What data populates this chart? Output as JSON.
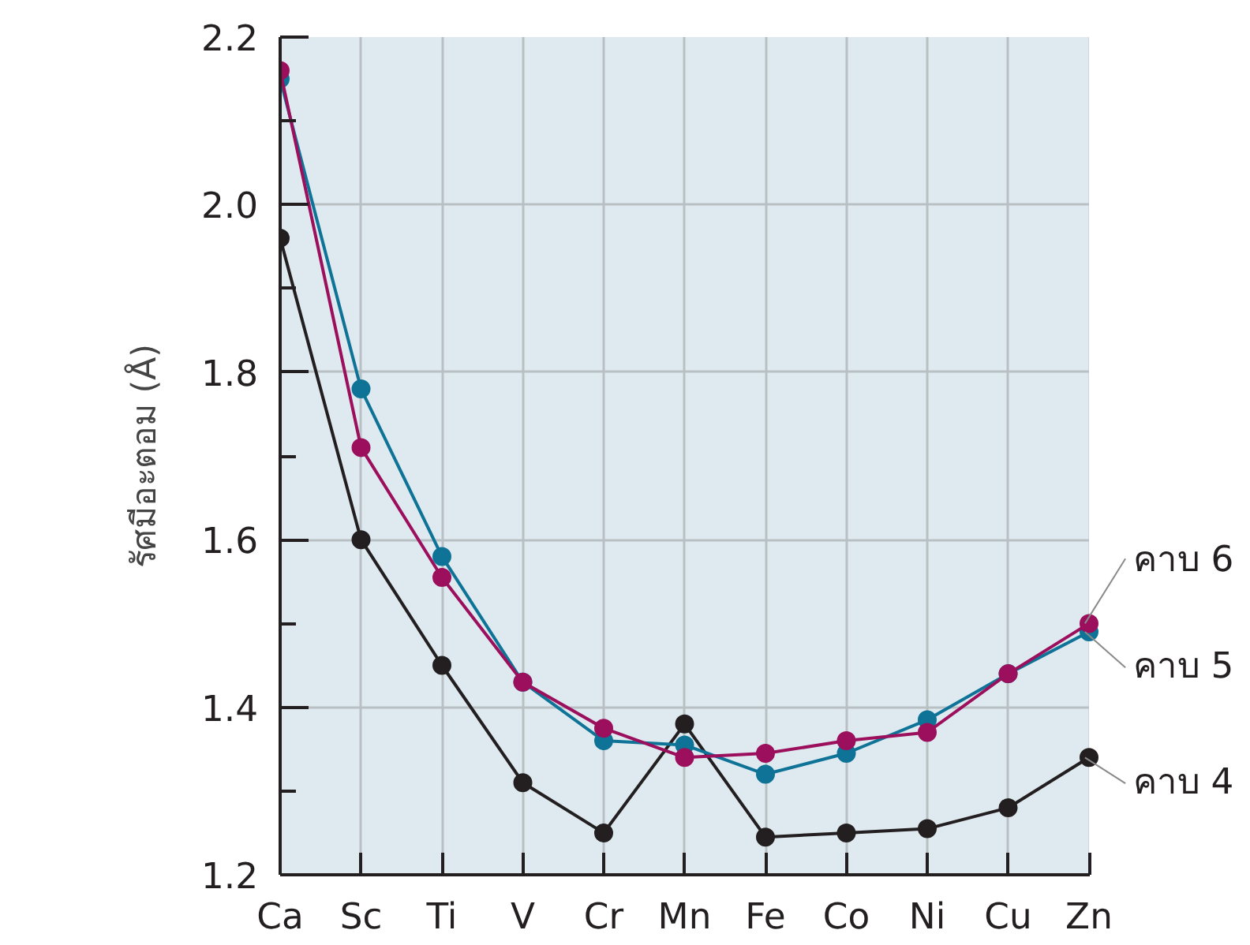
{
  "chart_data": {
    "type": "line",
    "ylabel": "รัศมีอะตอม (Å)",
    "categories": [
      "Ca",
      "Sc",
      "Ti",
      "V",
      "Cr",
      "Mn",
      "Fe",
      "Co",
      "Ni",
      "Cu",
      "Zn"
    ],
    "series": [
      {
        "name": "คาบ 4",
        "color": "#231f20",
        "values": [
          1.96,
          1.6,
          1.45,
          1.31,
          1.25,
          1.38,
          1.245,
          1.25,
          1.255,
          1.28,
          1.34
        ]
      },
      {
        "name": "คาบ 5",
        "color": "#0e7396",
        "values": [
          2.15,
          1.78,
          1.58,
          1.43,
          1.36,
          1.355,
          1.32,
          1.345,
          1.385,
          1.44,
          1.49
        ]
      },
      {
        "name": "คาบ 6",
        "color": "#9b0f5c",
        "values": [
          2.16,
          1.71,
          1.555,
          1.43,
          1.375,
          1.34,
          1.345,
          1.36,
          1.37,
          1.44,
          1.5
        ]
      }
    ],
    "ylim": [
      1.2,
      2.2
    ],
    "yticks": [
      1.2,
      {
        "value": 1.3,
        "label": null
      },
      1.4,
      {
        "value": 1.5,
        "label": null
      },
      1.6,
      {
        "value": 1.7,
        "label": null
      },
      1.8,
      {
        "value": 1.9,
        "label": null
      },
      {
        "value": 2.0,
        "label": "2.0"
      },
      {
        "value": 2.1,
        "label": null
      },
      2.2
    ],
    "grid": true,
    "legend": false,
    "marker": "circle",
    "line_style": "solid"
  }
}
